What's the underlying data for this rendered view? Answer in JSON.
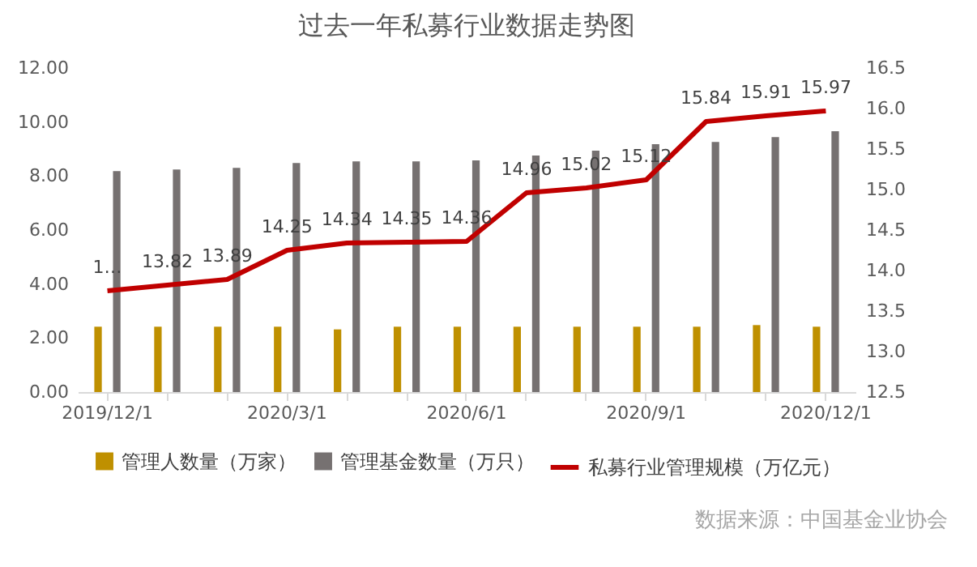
{
  "chart_data": {
    "type": "bar",
    "title": "过去一年私募行业数据走势图",
    "categories": [
      "2019/12/1",
      null,
      null,
      "2020/3/1",
      null,
      null,
      "2020/6/1",
      null,
      null,
      "2020/9/1",
      null,
      null,
      "2020/12/1"
    ],
    "series": [
      {
        "name": "管理人数量（万家）",
        "color": "#bf9000",
        "values": [
          2.42,
          2.42,
          2.42,
          2.42,
          2.32,
          2.42,
          2.42,
          2.42,
          2.42,
          2.42,
          2.42,
          2.48,
          2.42
        ]
      },
      {
        "name": "管理基金数量（万只）",
        "color": "#767171",
        "values": [
          8.18,
          8.24,
          8.3,
          8.48,
          8.54,
          8.54,
          8.58,
          8.76,
          8.94,
          9.18,
          9.26,
          9.44,
          9.66
        ]
      },
      {
        "name": "私募行业管理规模（万亿元）",
        "color": "#c00000",
        "type": "line",
        "axis": "y2",
        "values": [
          13.75,
          13.82,
          13.89,
          14.25,
          14.34,
          14.35,
          14.36,
          14.96,
          15.02,
          15.12,
          15.84,
          15.91,
          15.97
        ],
        "value_labels": [
          "1…",
          "13.82",
          "13.89",
          "14.25",
          "14.34",
          "14.35",
          "14.36",
          "14.96",
          "15.02",
          "15.12",
          "15.84",
          "15.91",
          "15.97"
        ]
      }
    ],
    "ylim": [
      0,
      12
    ],
    "yticks": [
      {
        "value": 0,
        "label": "0.00"
      },
      {
        "value": 2,
        "label": "2.00"
      },
      {
        "value": 4,
        "label": "4.00"
      },
      {
        "value": 6,
        "label": "6.00"
      },
      {
        "value": 8,
        "label": "8.00"
      },
      {
        "value": 10,
        "label": "10.00"
      },
      {
        "value": 12,
        "label": "12.00"
      }
    ],
    "y2lim": [
      12.5,
      16.5
    ],
    "y2ticks": [
      12.5,
      {
        "value": 13,
        "label": "13.0"
      },
      13.5,
      {
        "value": 14,
        "label": "14.0"
      },
      14.5,
      {
        "value": 15,
        "label": "15.0"
      },
      15.5,
      {
        "value": 16,
        "label": "16.0"
      },
      16.5
    ],
    "legend": "bottom",
    "annotations": [
      "数据来源：中国基金业协会"
    ]
  }
}
